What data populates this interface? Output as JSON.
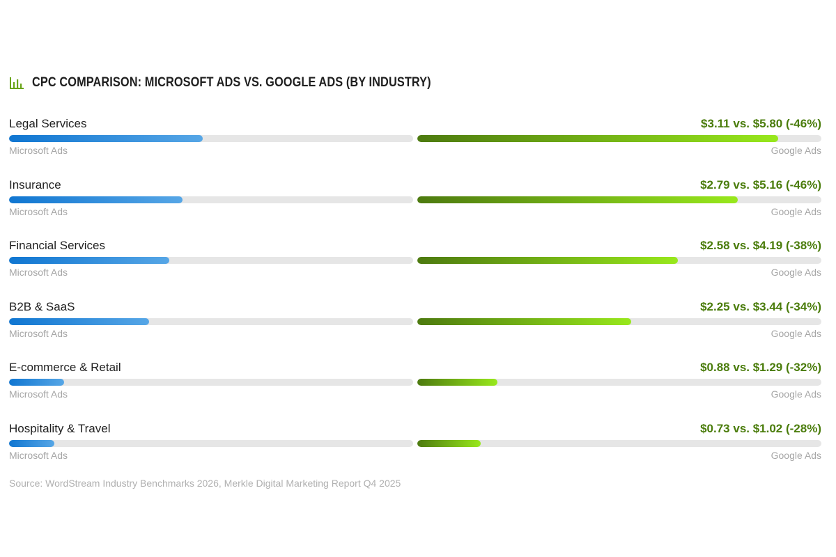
{
  "chart_data": {
    "type": "bar",
    "title": "CPC Comparison: Microsoft Ads vs. Google Ads (By Industry)",
    "series": [
      {
        "name": "Microsoft Ads",
        "values": [
          3.11,
          2.79,
          2.58,
          2.25,
          0.88,
          0.73
        ]
      },
      {
        "name": "Google Ads",
        "values": [
          5.8,
          5.16,
          4.19,
          3.44,
          1.29,
          1.02
        ]
      }
    ],
    "categories": [
      "Legal Services",
      "Insurance",
      "Financial Services",
      "B2B & SaaS",
      "E-commerce & Retail",
      "Hospitality & Travel"
    ],
    "rows": [
      {
        "industry": "Legal Services",
        "comparison": "$3.11 vs. $5.80 (-46%)",
        "microsoft_label": "Microsoft Ads",
        "google_label": "Google Ads",
        "microsoft": 3.11,
        "google": 5.8
      },
      {
        "industry": "Insurance",
        "comparison": "$2.79 vs. $5.16 (-46%)",
        "microsoft_label": "Microsoft Ads",
        "google_label": "Google Ads",
        "microsoft": 2.79,
        "google": 5.16
      },
      {
        "industry": "Financial Services",
        "comparison": "$2.58 vs. $4.19 (-38%)",
        "microsoft_label": "Microsoft Ads",
        "google_label": "Google Ads",
        "microsoft": 2.58,
        "google": 4.19
      },
      {
        "industry": "B2B & SaaS",
        "comparison": "$2.25 vs. $3.44 (-34%)",
        "microsoft_label": "Microsoft Ads",
        "google_label": "Google Ads",
        "microsoft": 2.25,
        "google": 3.44
      },
      {
        "industry": "E-commerce & Retail",
        "comparison": "$0.88 vs. $1.29 (-32%)",
        "microsoft_label": "Microsoft Ads",
        "google_label": "Google Ads",
        "microsoft": 0.88,
        "google": 1.29
      },
      {
        "industry": "Hospitality & Travel",
        "comparison": "$0.73 vs. $1.02 (-28%)",
        "microsoft_label": "Microsoft Ads",
        "google_label": "Google Ads",
        "microsoft": 0.73,
        "google": 1.02
      }
    ],
    "xlim": [
      0,
      6.5
    ],
    "source": "Source: WordStream Industry Benchmarks 2026, Merkle Digital Marketing Report Q4 2025",
    "colors": {
      "microsoft_start": "#1076d1",
      "microsoft_end": "#56a6e6",
      "google_start": "#4d7a0f",
      "google_end": "#98e81c",
      "comparison_text": "#4a7c0b",
      "track": "#e6e6e6"
    },
    "icon": "bar-chart-icon"
  }
}
